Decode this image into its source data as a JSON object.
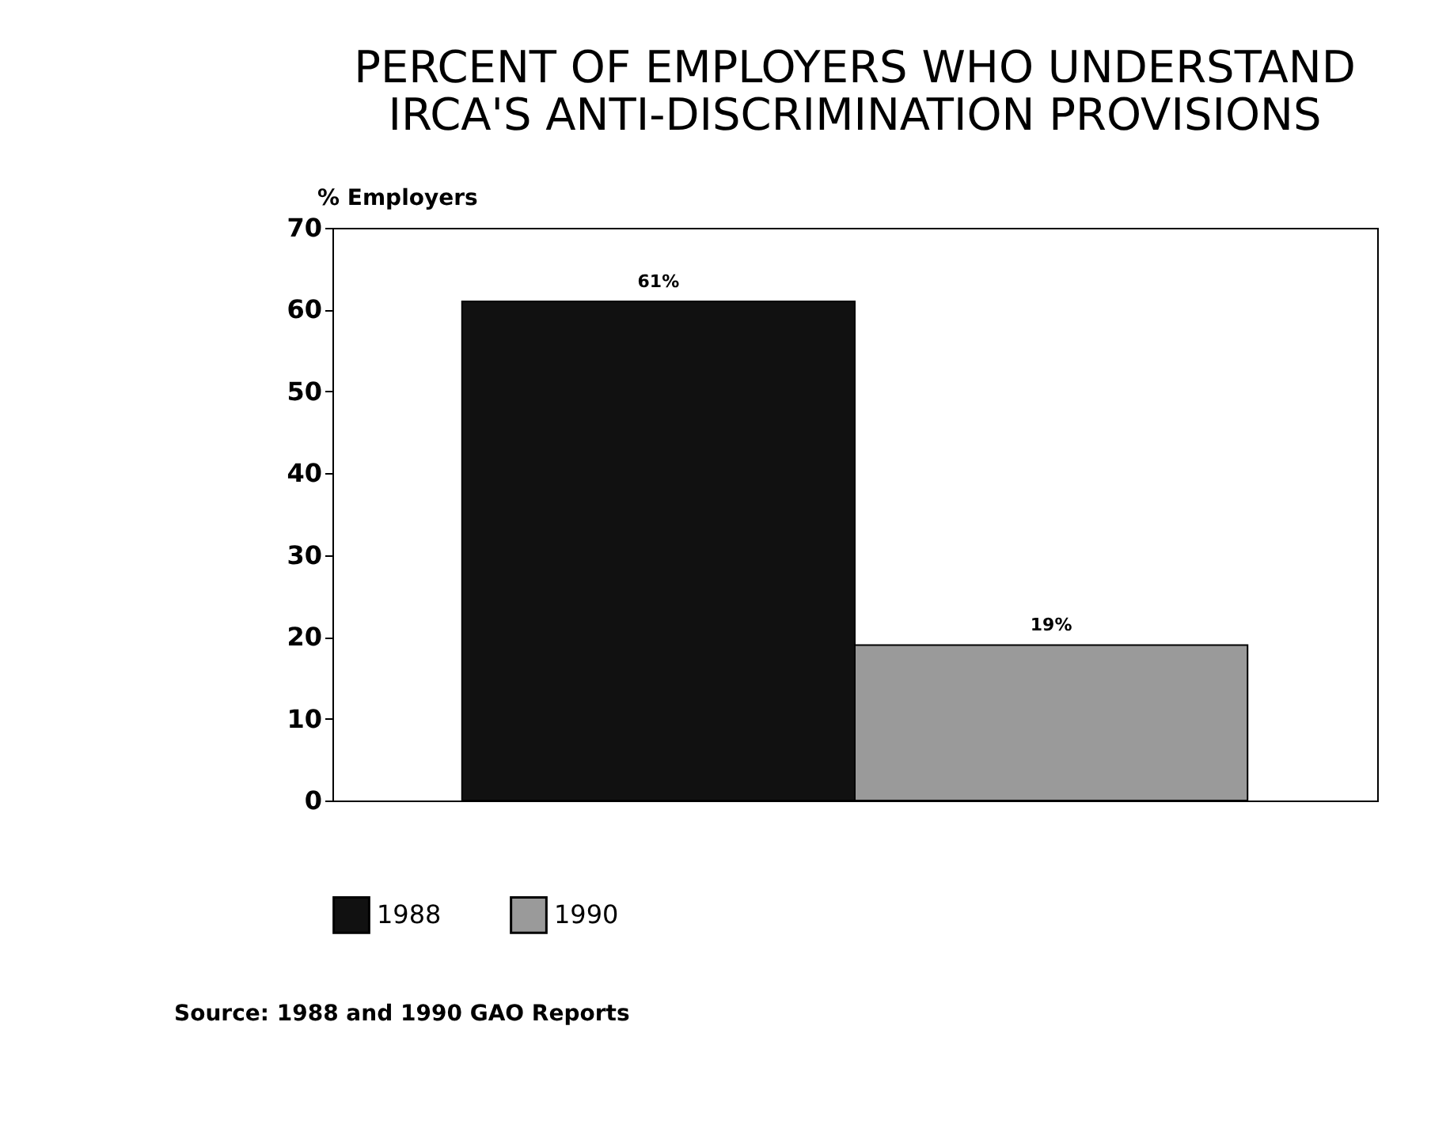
{
  "chart_data": {
    "type": "bar",
    "title": [
      "PERCENT OF EMPLOYERS WHO UNDERSTAND",
      "IRCA'S ANTI-DISCRIMINATION PROVISIONS"
    ],
    "ylabel": "% Employers",
    "categories": [
      null
    ],
    "series": [
      {
        "name": "1988",
        "color": "#111111",
        "values": [
          61
        ],
        "value_labels": [
          "61%"
        ]
      },
      {
        "name": "1990",
        "color": "#9a9a9a",
        "values": [
          19
        ],
        "value_labels": [
          "19%"
        ]
      }
    ],
    "ylim": [
      0,
      70
    ],
    "yticks": [
      0,
      10,
      20,
      30,
      40,
      50,
      60,
      70
    ],
    "grid": false,
    "legend": "bottom",
    "annotations": [
      "Source: 1988 and 1990 GAO Reports"
    ]
  }
}
